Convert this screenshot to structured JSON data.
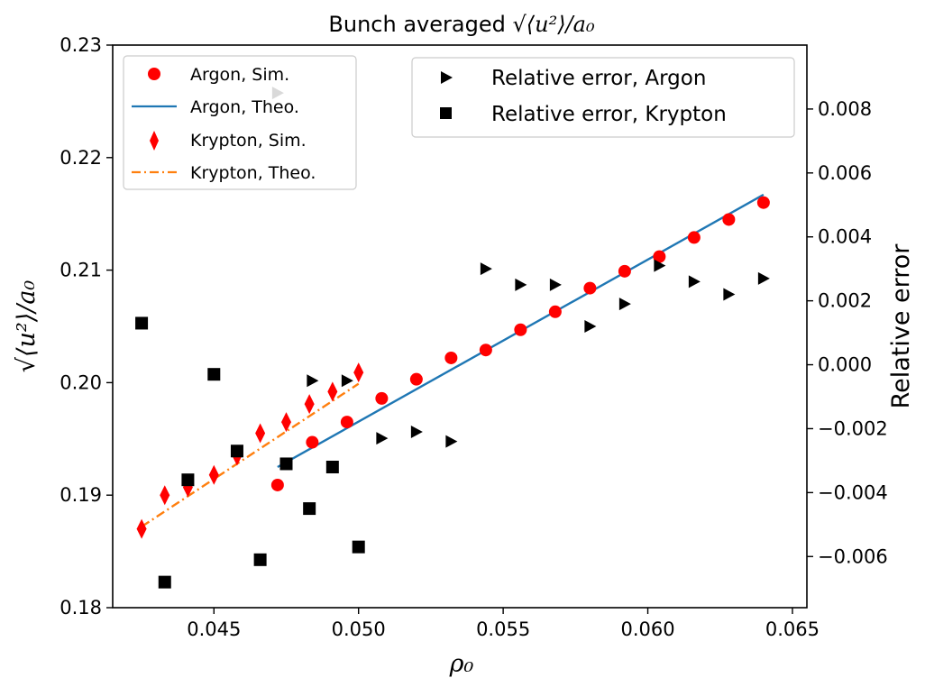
{
  "chart_data": {
    "type": "scatter",
    "title": {
      "prefix": "Bunch averaged ",
      "math": "√⟨u²⟩/a₀"
    },
    "xlabel": "ρ₀",
    "ylabel_left": "√⟨u²⟩/a₀",
    "ylabel_right": "Relative error",
    "xlim": [
      0.0415,
      0.0655
    ],
    "ylim_left": [
      0.18,
      0.23
    ],
    "ylim_right": [
      -0.0076,
      0.01
    ],
    "x_ticks": [
      0.045,
      0.05,
      0.055,
      0.06,
      0.065
    ],
    "x_tick_labels": [
      "0.045",
      "0.050",
      "0.055",
      "0.060",
      "0.065"
    ],
    "y_left_ticks": [
      0.18,
      0.19,
      0.2,
      0.21,
      0.22,
      0.23
    ],
    "y_left_tick_labels": [
      "0.18",
      "0.19",
      "0.20",
      "0.21",
      "0.22",
      "0.23"
    ],
    "y_right_ticks": [
      -0.006,
      -0.004,
      -0.002,
      0.0,
      0.002,
      0.004,
      0.006,
      0.008
    ],
    "y_right_tick_labels": [
      "−0.006",
      "−0.004",
      "−0.002",
      "0.000",
      "0.002",
      "0.004",
      "0.006",
      "0.008"
    ],
    "grid": false,
    "series": [
      {
        "name": "Argon, Sim.",
        "kind": "scatter",
        "marker": "circle",
        "color": "#ff0000",
        "axis": "left",
        "x": [
          0.0472,
          0.0484,
          0.0496,
          0.0508,
          0.052,
          0.0532,
          0.0544,
          0.0556,
          0.0568,
          0.058,
          0.0592,
          0.0604,
          0.0616,
          0.0628,
          0.064
        ],
        "y": [
          0.1909,
          0.1947,
          0.1965,
          0.1986,
          0.2003,
          0.2022,
          0.2029,
          0.2047,
          0.2063,
          0.2084,
          0.2099,
          0.2112,
          0.2129,
          0.2145,
          0.216
        ]
      },
      {
        "name": "Argon, Theo.",
        "kind": "line",
        "style": "solid",
        "color": "#1f77b4",
        "axis": "left",
        "x": [
          0.0472,
          0.064
        ],
        "y": [
          0.1925,
          0.2167
        ]
      },
      {
        "name": "Krypton, Sim.",
        "kind": "scatter",
        "marker": "diamond",
        "color": "#ff0000",
        "axis": "left",
        "x": [
          0.0425,
          0.0433,
          0.0441,
          0.045,
          0.0458,
          0.0466,
          0.0475,
          0.0483,
          0.0491,
          0.05
        ],
        "y": [
          0.187,
          0.19,
          0.1907,
          0.1918,
          0.1935,
          0.1955,
          0.1965,
          0.1981,
          0.1992,
          0.2009
        ]
      },
      {
        "name": "Krypton, Theo.",
        "kind": "line",
        "style": "dashdot",
        "color": "#ff7f0e",
        "axis": "left",
        "x": [
          0.0425,
          0.05
        ],
        "y": [
          0.1872,
          0.1999
        ]
      },
      {
        "name": "Relative error, Argon",
        "kind": "scatter",
        "marker": "triangle-right",
        "color": "#000000",
        "axis": "right",
        "x": [
          0.0472,
          0.0484,
          0.0496,
          0.0508,
          0.052,
          0.0532,
          0.0544,
          0.0556,
          0.0568,
          0.058,
          0.0592,
          0.0604,
          0.0616,
          0.0628,
          0.064
        ],
        "y": [
          0.0085,
          -0.0005,
          -0.0005,
          -0.0023,
          -0.0021,
          -0.0024,
          0.003,
          0.0025,
          0.0025,
          0.0012,
          0.0019,
          0.0031,
          0.0026,
          0.0022,
          0.0027
        ]
      },
      {
        "name": "Relative error, Krypton",
        "kind": "scatter",
        "marker": "square",
        "color": "#000000",
        "axis": "right",
        "x": [
          0.0425,
          0.0433,
          0.0441,
          0.045,
          0.0458,
          0.0466,
          0.0475,
          0.0483,
          0.0491,
          0.05
        ],
        "y": [
          0.0013,
          -0.0068,
          -0.0036,
          -0.0003,
          -0.0027,
          -0.0061,
          -0.0031,
          -0.0045,
          -0.0032,
          -0.0057
        ]
      }
    ],
    "legends": [
      {
        "placement": "upper-left",
        "entries": [
          "Argon, Sim.",
          "Argon, Theo.",
          "Krypton, Sim.",
          "Krypton, Theo."
        ]
      },
      {
        "placement": "upper-right",
        "entries": [
          "Relative error, Argon",
          "Relative error, Krypton"
        ]
      }
    ]
  }
}
